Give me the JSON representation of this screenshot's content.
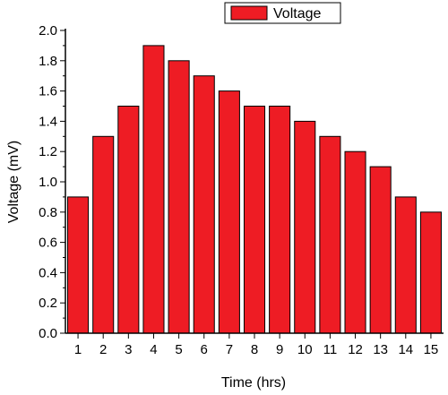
{
  "chart_data": {
    "type": "bar",
    "title": "",
    "xlabel": "Time (hrs)",
    "ylabel": "Voltage (mV)",
    "categories": [
      "1",
      "2",
      "3",
      "4",
      "5",
      "6",
      "7",
      "8",
      "9",
      "10",
      "11",
      "12",
      "13",
      "14",
      "15"
    ],
    "series": [
      {
        "name": "Voltage",
        "values": [
          0.9,
          1.3,
          1.5,
          1.9,
          1.8,
          1.7,
          1.6,
          1.5,
          1.5,
          1.4,
          1.3,
          1.2,
          1.1,
          0.9,
          0.8
        ]
      }
    ],
    "ylim": [
      0.0,
      2.0
    ],
    "yticks": [
      "0.0",
      "0.2",
      "0.4",
      "0.6",
      "0.8",
      "1.0",
      "1.2",
      "1.4",
      "1.6",
      "1.8",
      "2.0"
    ],
    "grid": false,
    "legend_position": "top-right",
    "bar_color": "#ee1c24",
    "edge_color": "#000000"
  }
}
